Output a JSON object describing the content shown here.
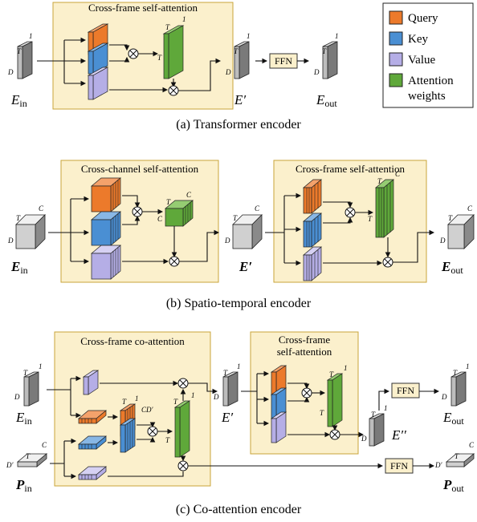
{
  "legend": {
    "items": [
      {
        "label": "Query",
        "color": "#ec7a2b"
      },
      {
        "label": "Key",
        "color": "#4a8fd3"
      },
      {
        "label": "Value",
        "color": "#b5aee6"
      },
      {
        "label": "Attention",
        "label2": "weights",
        "color": "#5fa83a"
      }
    ]
  },
  "panel_a": {
    "block_title": "Cross-frame self-attention",
    "caption": "(a) Transformer encoder",
    "input": {
      "name": "E",
      "sub": "in"
    },
    "mid": {
      "name": "E′"
    },
    "output": {
      "name": "E",
      "sub": "out"
    },
    "ffn": "FFN"
  },
  "panel_b": {
    "block1_title": "Cross-channel self-attention",
    "block2_title": "Cross-frame self-attention",
    "caption": "(b) Spatio-temporal encoder",
    "input": {
      "name": "E",
      "sub": "in"
    },
    "mid": {
      "name": "E′"
    },
    "output": {
      "name": "E",
      "sub": "out"
    }
  },
  "panel_c": {
    "block1_title": "Cross-frame co-attention",
    "block2_title_line1": "Cross-frame",
    "block2_title_line2": "self-attention",
    "caption": "(c) Co-attention encoder",
    "input_e": {
      "name": "E",
      "sub": "in"
    },
    "input_p": {
      "name": "P",
      "sub": "in"
    },
    "mid": {
      "name": "E′"
    },
    "mid2": {
      "name": "E′′"
    },
    "output_e": {
      "name": "E",
      "sub": "out"
    },
    "output_p": {
      "name": "P",
      "sub": "out"
    },
    "ffn_top": "FFN",
    "ffn_bottom": "FFN"
  },
  "dims": {
    "T": "T",
    "D": "D",
    "C": "C",
    "one": "1",
    "CD": "CD′",
    "Dp": "D′"
  }
}
